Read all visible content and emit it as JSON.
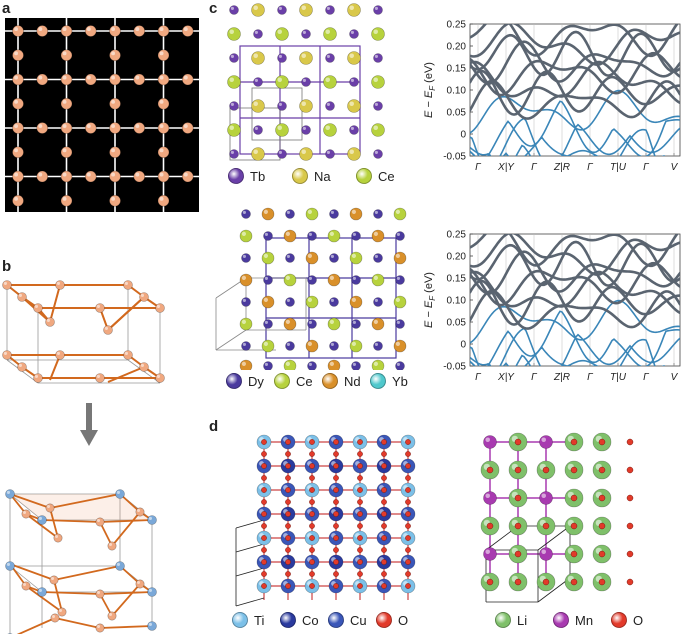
{
  "panels": {
    "a": {
      "label": "a"
    },
    "b": {
      "label": "b"
    },
    "c": {
      "label": "c"
    },
    "d": {
      "label": "d"
    }
  },
  "legends": {
    "c_top": [
      {
        "name": "Tb",
        "color": "#6a3fa8"
      },
      {
        "name": "Na",
        "color": "#d9c84a"
      },
      {
        "name": "Ce",
        "color": "#b7d23d"
      }
    ],
    "c_bottom": [
      {
        "name": "Dy",
        "color": "#4a3a9e"
      },
      {
        "name": "Ce",
        "color": "#b7d23d"
      },
      {
        "name": "Nd",
        "color": "#d9902a"
      },
      {
        "name": "Yb",
        "color": "#4fc8cc"
      }
    ],
    "d_left": [
      {
        "name": "Ti",
        "color": "#7cc0e8"
      },
      {
        "name": "Co",
        "color": "#2a3a9e"
      },
      {
        "name": "Cu",
        "color": "#3a56b8"
      },
      {
        "name": "O",
        "color": "#e23a2a"
      }
    ],
    "d_right": [
      {
        "name": "Li",
        "color": "#7fc06a"
      },
      {
        "name": "Mn",
        "color": "#a83ab0"
      },
      {
        "name": "O",
        "color": "#e23a2a"
      }
    ]
  },
  "chart_data": [
    {
      "type": "line",
      "panel": "c-top-bands",
      "ylabel_main": "E − E",
      "ylabel_sub": "F",
      "ylabel_unit": " (eV)",
      "ylim": [
        -0.05,
        0.25
      ],
      "yticks": [
        "0.25",
        "0.20",
        "0.15",
        "0.10",
        "0.05",
        "0",
        "-0.05"
      ],
      "xticks": [
        "Γ",
        "X|Y",
        "Γ",
        "Z|R",
        "Γ",
        "T|U",
        "Γ",
        "V"
      ],
      "grid": false
    },
    {
      "type": "line",
      "panel": "c-bottom-bands",
      "ylabel_main": "E − E",
      "ylabel_sub": "F",
      "ylabel_unit": " (eV)",
      "ylim": [
        -0.05,
        0.25
      ],
      "yticks": [
        "0.25",
        "0.20",
        "0.15",
        "0.10",
        "0.05",
        "0",
        "-0.05"
      ],
      "xticks": [
        "Γ",
        "X|Y",
        "Γ",
        "Z|R",
        "Γ",
        "T|U",
        "Γ",
        "V"
      ],
      "grid": false
    }
  ],
  "colors": {
    "kagome_atom": "#f0a880",
    "kagome_bond": "#d2691e",
    "blue_atom": "#7aa8d8",
    "band_gray": "#5a6470",
    "band_blue": "#3a86b8"
  }
}
